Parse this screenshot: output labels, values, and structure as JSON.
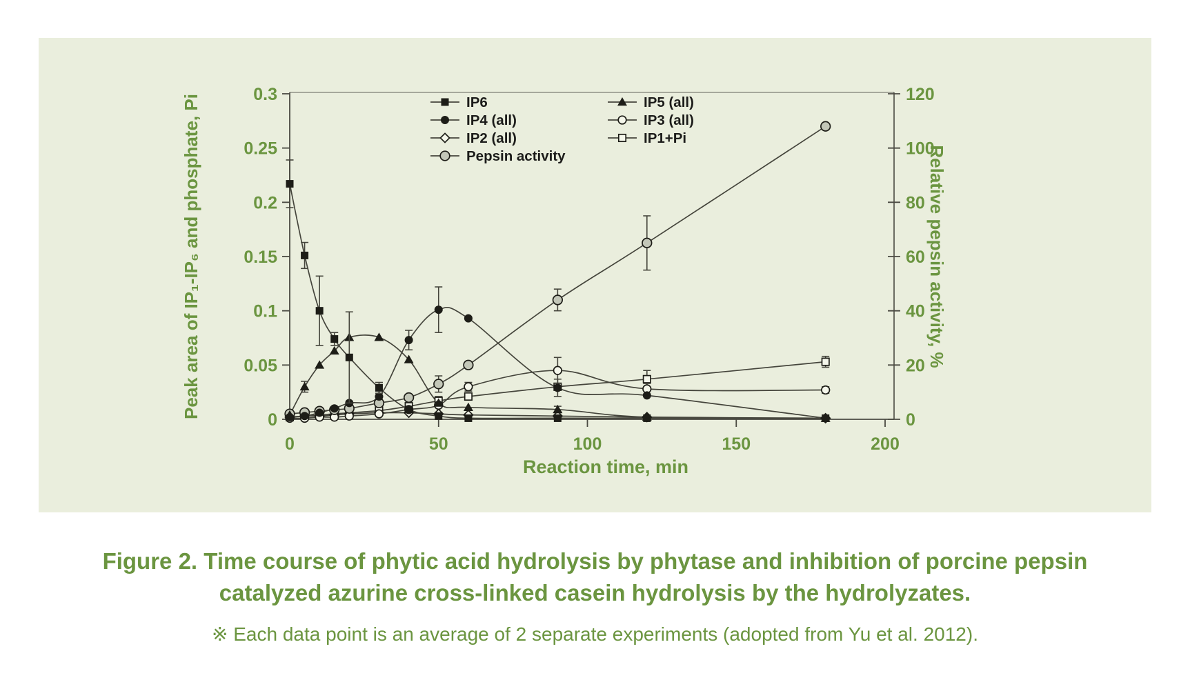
{
  "colors": {
    "panel_bg": "#eaeedd",
    "accent_green": "#6b9540",
    "line_dark": "#45453c",
    "marker_dark": "#1d1d17",
    "open_fill": "#f5f7eb",
    "pepsin_fill": "#c3c7b8",
    "spine_dark": "#4a4a42",
    "spine_light": "#8f9086"
  },
  "caption": {
    "line1": "Figure 2. Time course of phytic acid hydrolysis by phytase and inhibition of porcine pepsin",
    "line2": "catalyzed azurine cross-linked casein hydrolysis by the hydrolyzates.",
    "note": "※ Each data point is an average of 2 separate experiments (adopted from Yu et al. 2012)."
  },
  "chart_data": {
    "type": "line",
    "x": {
      "label": "Reaction time, min",
      "range": [
        0,
        200
      ],
      "ticks": [
        "0",
        "50",
        "100",
        "150",
        "200"
      ]
    },
    "y_left": {
      "label": "Peak area of IP₁-IP₆ and phosphate, Pi",
      "range": [
        0,
        0.3
      ],
      "ticks": [
        "0.3",
        "0.25",
        "0.2",
        "0.15",
        "0.1",
        "0.05",
        "0"
      ]
    },
    "y_right": {
      "label": "Relative pepsin activity, %",
      "range": [
        0,
        120
      ],
      "ticks": [
        "120",
        "100",
        "80",
        "60",
        "40",
        "20",
        "0"
      ]
    },
    "grid": false,
    "legend": {
      "position": "top-inside",
      "col1": [
        "IP6",
        "IP4 (all)",
        "IP2 (all)",
        "Pepsin activity"
      ],
      "col2": [
        "IP5 (all)",
        "IP3 (all)",
        "IP1+Pi"
      ]
    },
    "series": [
      {
        "name": "IP6",
        "marker": "filled-square",
        "axis": "left",
        "points": [
          [
            0,
            0.217,
            0.022
          ],
          [
            5,
            0.151,
            0.012
          ],
          [
            10,
            0.1,
            0.032
          ],
          [
            15,
            0.074,
            0.006
          ],
          [
            20,
            0.057,
            0.042
          ],
          [
            30,
            0.029,
            0.005
          ],
          [
            40,
            0.009,
            0
          ],
          [
            50,
            0.003,
            0
          ],
          [
            60,
            0.001,
            0
          ],
          [
            90,
            0.001,
            0
          ],
          [
            120,
            0.001,
            0
          ],
          [
            180,
            0.001,
            0
          ]
        ]
      },
      {
        "name": "IP5 (all)",
        "marker": "filled-triangle",
        "axis": "left",
        "points": [
          [
            0,
            0.004,
            0
          ],
          [
            5,
            0.03,
            0.005
          ],
          [
            10,
            0.05,
            0
          ],
          [
            15,
            0.063,
            0
          ],
          [
            20,
            0.0755,
            0
          ],
          [
            30,
            0.0755,
            0
          ],
          [
            40,
            0.055,
            0
          ],
          [
            50,
            0.015,
            0
          ],
          [
            60,
            0.011,
            0
          ],
          [
            90,
            0.009,
            0.003
          ],
          [
            120,
            0.002,
            0
          ],
          [
            180,
            0.001,
            0
          ]
        ]
      },
      {
        "name": "IP4 (all)",
        "marker": "filled-circle",
        "axis": "left",
        "points": [
          [
            0,
            0.002,
            0
          ],
          [
            5,
            0.003,
            0
          ],
          [
            10,
            0.006,
            0
          ],
          [
            15,
            0.01,
            0
          ],
          [
            20,
            0.015,
            0
          ],
          [
            30,
            0.021,
            0
          ],
          [
            40,
            0.073,
            0.009
          ],
          [
            50,
            0.101,
            0.021
          ],
          [
            60,
            0.093,
            0
          ],
          [
            90,
            0.029,
            0.008
          ],
          [
            120,
            0.022,
            0
          ],
          [
            180,
            0.001,
            0
          ]
        ]
      },
      {
        "name": "IP3 (all)",
        "marker": "open-circle",
        "axis": "left",
        "points": [
          [
            0,
            0.001,
            0
          ],
          [
            5,
            0.001,
            0
          ],
          [
            10,
            0.002,
            0
          ],
          [
            15,
            0.002,
            0
          ],
          [
            20,
            0.003,
            0
          ],
          [
            30,
            0.005,
            0
          ],
          [
            40,
            0.009,
            0
          ],
          [
            50,
            0.013,
            0
          ],
          [
            60,
            0.03,
            0.004
          ],
          [
            90,
            0.045,
            0.012
          ],
          [
            120,
            0.028,
            0.005
          ],
          [
            180,
            0.027,
            0.003
          ]
        ]
      },
      {
        "name": "IP2 (all)",
        "marker": "open-diamond",
        "axis": "left",
        "points": [
          [
            0,
            0.002,
            0
          ],
          [
            5,
            0.003,
            0
          ],
          [
            10,
            0.003,
            0
          ],
          [
            15,
            0.004,
            0
          ],
          [
            20,
            0.005,
            0
          ],
          [
            30,
            0.006,
            0
          ],
          [
            40,
            0.006,
            0
          ],
          [
            50,
            0.005,
            0
          ],
          [
            60,
            0.004,
            0
          ],
          [
            90,
            0.003,
            0
          ],
          [
            120,
            0.002,
            0
          ],
          [
            180,
            0.001,
            0
          ]
        ]
      },
      {
        "name": "IP1+Pi",
        "marker": "open-square",
        "axis": "left",
        "points": [
          [
            0,
            0.002,
            0
          ],
          [
            5,
            0.003,
            0
          ],
          [
            10,
            0.004,
            0
          ],
          [
            15,
            0.005,
            0
          ],
          [
            20,
            0.006,
            0
          ],
          [
            30,
            0.008,
            0
          ],
          [
            40,
            0.012,
            0
          ],
          [
            50,
            0.017,
            0.004
          ],
          [
            60,
            0.021,
            0
          ],
          [
            90,
            0.03,
            0
          ],
          [
            120,
            0.037,
            0.008
          ],
          [
            180,
            0.053,
            0.005
          ]
        ]
      },
      {
        "name": "Pepsin activity",
        "marker": "gray-circle",
        "axis": "right",
        "points": [
          [
            0,
            2,
            0
          ],
          [
            5,
            2.5,
            0
          ],
          [
            10,
            3,
            0
          ],
          [
            15,
            3.5,
            0
          ],
          [
            20,
            4,
            0
          ],
          [
            30,
            6,
            0
          ],
          [
            40,
            8,
            0
          ],
          [
            50,
            13,
            3
          ],
          [
            60,
            20,
            0
          ],
          [
            90,
            44,
            4
          ],
          [
            120,
            65,
            10
          ],
          [
            180,
            108,
            0
          ]
        ]
      }
    ]
  }
}
